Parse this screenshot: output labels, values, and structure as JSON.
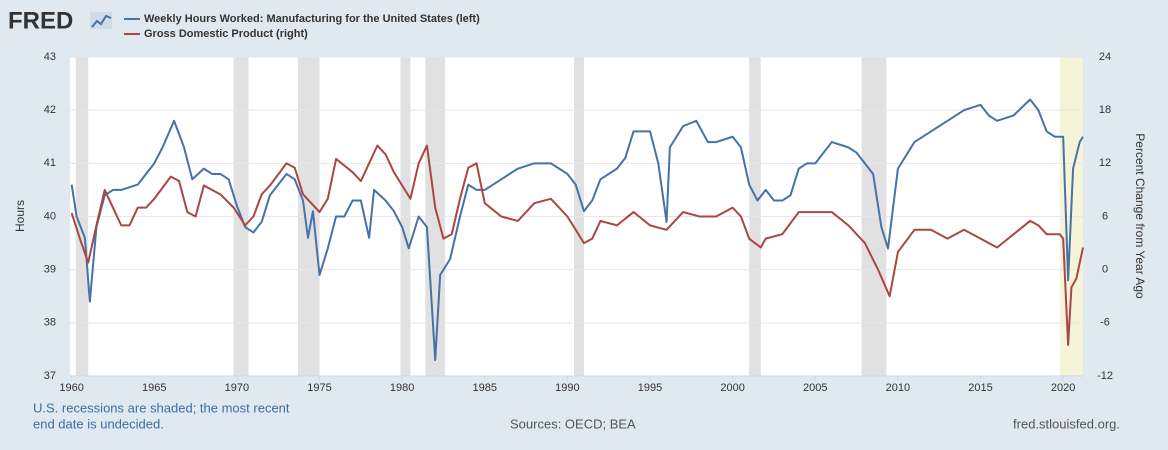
{
  "chart_data": {
    "type": "line",
    "logo": "FRED",
    "y_label": "Hours",
    "y2_label": "Percent Change from Year Ago",
    "note": [
      "U.S. recessions are shaded; the most recent",
      "end date is undecided."
    ],
    "sources": "Sources: OECD; BEA",
    "credit": "fred.stlouisfed.org.",
    "xlim": [
      1959.9,
      2021.2
    ],
    "xticks": [
      1960,
      1965,
      1970,
      1975,
      1980,
      1985,
      1990,
      1995,
      2000,
      2005,
      2010,
      2015,
      2020
    ],
    "ylim": [
      37,
      43
    ],
    "yticks": [
      37,
      38,
      39,
      40,
      41,
      42,
      43
    ],
    "y2lim": [
      -12,
      24
    ],
    "y2ticks": [
      -12,
      -6,
      0,
      6,
      12,
      18,
      24
    ],
    "grid": true,
    "recession_color": "#e1e1e1",
    "recessions": [
      [
        1960.25,
        1961.0
      ],
      [
        1969.8,
        1970.7
      ],
      [
        1973.7,
        1975.0
      ],
      [
        1979.9,
        1980.5
      ],
      [
        1981.4,
        1982.6
      ],
      [
        1990.4,
        1991.0
      ],
      [
        2001.0,
        2001.7
      ],
      [
        2007.8,
        2009.3
      ]
    ],
    "undecided_recession_color": "#f6f4d8",
    "undecided_recession": [
      2019.8,
      2021.2
    ],
    "series": [
      {
        "name": "Weekly Hours Worked: Manufacturing for the United States (left)",
        "color": "#4572a7",
        "axis": "y",
        "x": [
          1960.0,
          1960.3,
          1960.8,
          1961.1,
          1961.5,
          1962,
          1962.5,
          1963,
          1964,
          1964.5,
          1965,
          1965.5,
          1966.2,
          1966.8,
          1967.3,
          1968,
          1968.5,
          1969,
          1969.5,
          1970,
          1970.5,
          1971,
          1971.5,
          1972,
          1972.5,
          1973,
          1973.5,
          1974,
          1974.3,
          1974.6,
          1975.0,
          1975.5,
          1976,
          1976.5,
          1977,
          1977.5,
          1978,
          1978.3,
          1979,
          1979.5,
          1980,
          1980.4,
          1980.8,
          1981,
          1981.5,
          1982,
          1982.3,
          1982.9,
          1983.5,
          1984,
          1984.5,
          1985,
          1986,
          1987,
          1988,
          1989,
          1989.5,
          1990,
          1990.5,
          1991,
          1991.5,
          1992,
          1993,
          1993.5,
          1994,
          1995,
          1995.5,
          1996.0,
          1996.2,
          1997,
          1997.8,
          1998.5,
          1999,
          2000,
          2000.5,
          2001,
          2001.5,
          2002,
          2002.5,
          2003,
          2003.5,
          2004,
          2004.5,
          2005,
          2006,
          2007,
          2007.5,
          2008,
          2008.5,
          2009,
          2009.4,
          2010,
          2011,
          2012,
          2013,
          2014,
          2015,
          2015.5,
          2016,
          2017,
          2018,
          2018.5,
          2019,
          2019.5,
          2020.0,
          2020.3,
          2020.6,
          2021.0,
          2021.2
        ],
        "values": [
          40.6,
          40.0,
          39.6,
          38.4,
          39.8,
          40.4,
          40.5,
          40.5,
          40.6,
          40.8,
          41.0,
          41.3,
          41.8,
          41.3,
          40.7,
          40.9,
          40.8,
          40.8,
          40.7,
          40.2,
          39.8,
          39.7,
          39.9,
          40.4,
          40.6,
          40.8,
          40.7,
          40.3,
          39.6,
          40.1,
          38.9,
          39.4,
          40.0,
          40.0,
          40.3,
          40.3,
          39.6,
          40.5,
          40.3,
          40.1,
          39.8,
          39.4,
          39.8,
          40.0,
          39.8,
          37.3,
          38.9,
          39.2,
          40.0,
          40.6,
          40.5,
          40.5,
          40.7,
          40.9,
          41.0,
          41.0,
          40.9,
          40.8,
          40.6,
          40.1,
          40.3,
          40.7,
          40.9,
          41.1,
          41.6,
          41.6,
          41.0,
          39.9,
          41.3,
          41.7,
          41.8,
          41.4,
          41.4,
          41.5,
          41.3,
          40.6,
          40.3,
          40.5,
          40.3,
          40.3,
          40.4,
          40.9,
          41.0,
          41.0,
          41.4,
          41.3,
          41.2,
          41.0,
          40.8,
          39.8,
          39.4,
          40.9,
          41.4,
          41.6,
          41.8,
          42.0,
          42.1,
          41.9,
          41.8,
          41.9,
          42.2,
          42.0,
          41.6,
          41.5,
          41.5,
          38.8,
          40.9,
          41.4,
          41.5
        ]
      },
      {
        "name": "Gross Domestic Product (right)",
        "color": "#aa4643",
        "axis": "y2",
        "x": [
          1960,
          1960.5,
          1961,
          1961.5,
          1962,
          1962.5,
          1963,
          1963.5,
          1964,
          1964.5,
          1965,
          1966,
          1966.5,
          1967,
          1967.5,
          1968,
          1969,
          1969.8,
          1970.5,
          1971,
          1971.5,
          1972,
          1973,
          1973.5,
          1974,
          1974.5,
          1975,
          1975.5,
          1976,
          1977,
          1977.5,
          1978,
          1978.5,
          1979,
          1979.5,
          1980,
          1980.5,
          1981,
          1981.5,
          1982,
          1982.5,
          1983,
          1983.5,
          1984,
          1984.5,
          1985,
          1986,
          1987,
          1988,
          1989,
          1990,
          1991,
          1991.5,
          1992,
          1993,
          1994,
          1995,
          1996,
          1997,
          1998,
          1999,
          2000,
          2000.5,
          2001,
          2001.7,
          2002,
          2003,
          2004,
          2005,
          2006,
          2007,
          2008,
          2008.8,
          2009.5,
          2010,
          2011,
          2012,
          2013,
          2014,
          2015,
          2016,
          2017,
          2018,
          2018.5,
          2019,
          2019.8,
          2020.0,
          2020.3,
          2020.5,
          2020.8,
          2021.2
        ],
        "values": [
          6.4,
          3.5,
          0.8,
          5,
          9,
          7,
          5,
          5,
          7,
          7,
          8,
          10.5,
          10,
          6.5,
          6,
          9.5,
          8.5,
          7,
          5,
          6,
          8.5,
          9.5,
          12,
          11.5,
          8.5,
          7.5,
          6.5,
          8,
          12.5,
          11,
          10,
          12,
          14,
          13,
          11,
          9.5,
          8,
          12,
          14,
          7,
          3.5,
          4,
          8,
          11.5,
          12,
          7.5,
          6,
          5.5,
          7.5,
          8,
          6,
          3,
          3.5,
          5.5,
          5,
          6.5,
          5,
          4.5,
          6.5,
          6,
          6,
          7,
          6,
          3.5,
          2.5,
          3.5,
          4,
          6.5,
          6.5,
          6.5,
          5,
          3,
          0,
          -3,
          2,
          4.5,
          4.5,
          3.5,
          4.5,
          3.5,
          2.5,
          4,
          5.5,
          5,
          4,
          4,
          3.5,
          -8.5,
          -2,
          -1,
          2.5
        ]
      }
    ]
  }
}
